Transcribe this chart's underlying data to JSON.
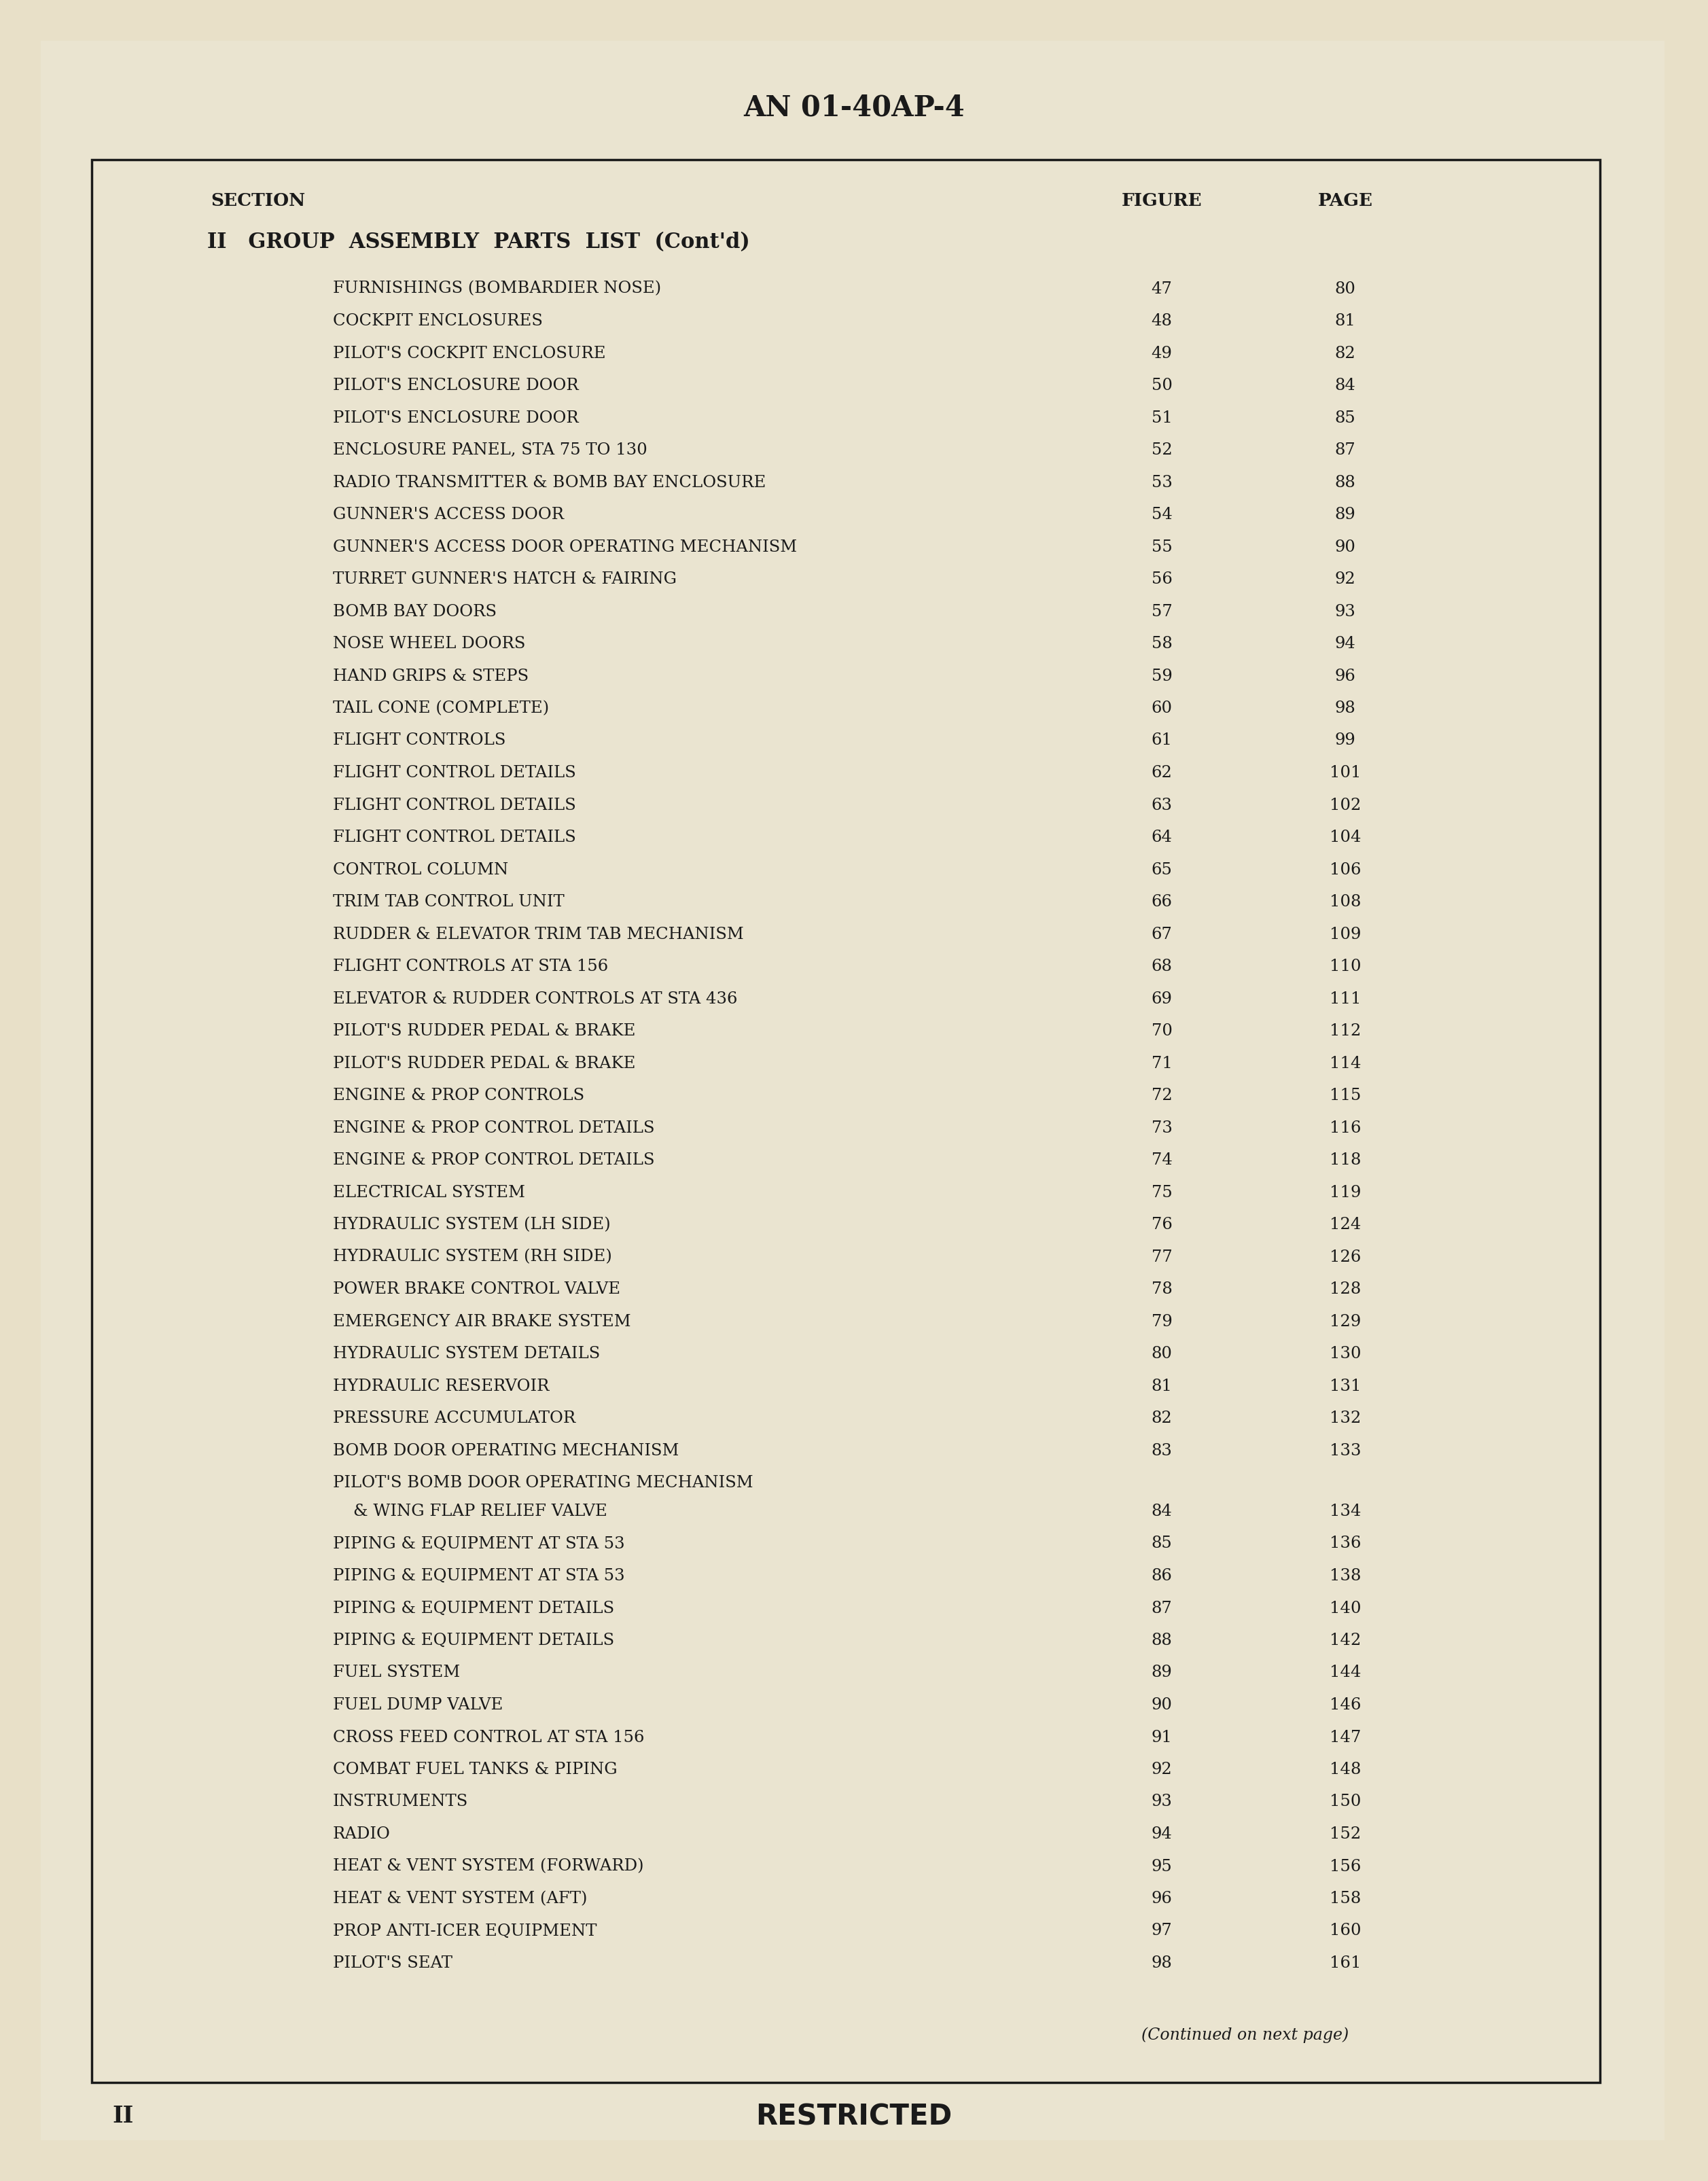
{
  "bg_color": "#E8E0C8",
  "page_bg": "#EAE4D0",
  "border_color": "#1a1a1a",
  "text_color": "#1a1a1a",
  "header_title": "AN 01-40AP-4",
  "section_label": "SECTION",
  "figure_label": "FIGURE",
  "page_label": "PAGE",
  "section_heading_1": "II   GROUP  ASSEMBLY  PARTS  LIST  (Cont'd)",
  "footer_left": "II",
  "footer_center": "RESTRICTED",
  "footer_note": "(Continued on next page)",
  "entries": [
    {
      "desc": "FURNISHINGS (BOMBARDIER NOSE)",
      "fig": "47",
      "pg": "80",
      "multiline": false
    },
    {
      "desc": "COCKPIT ENCLOSURES",
      "fig": "48",
      "pg": "81",
      "multiline": false
    },
    {
      "desc": "PILOT'S COCKPIT ENCLOSURE",
      "fig": "49",
      "pg": "82",
      "multiline": false
    },
    {
      "desc": "PILOT'S ENCLOSURE DOOR",
      "fig": "50",
      "pg": "84",
      "multiline": false
    },
    {
      "desc": "PILOT'S ENCLOSURE DOOR",
      "fig": "51",
      "pg": "85",
      "multiline": false
    },
    {
      "desc": "ENCLOSURE PANEL, STA 75 TO 130",
      "fig": "52",
      "pg": "87",
      "multiline": false
    },
    {
      "desc": "RADIO TRANSMITTER & BOMB BAY ENCLOSURE",
      "fig": "53",
      "pg": "88",
      "multiline": false
    },
    {
      "desc": "GUNNER'S ACCESS DOOR",
      "fig": "54",
      "pg": "89",
      "multiline": false
    },
    {
      "desc": "GUNNER'S ACCESS DOOR OPERATING MECHANISM",
      "fig": "55",
      "pg": "90",
      "multiline": false
    },
    {
      "desc": "TURRET GUNNER'S HATCH & FAIRING",
      "fig": "56",
      "pg": "92",
      "multiline": false
    },
    {
      "desc": "BOMB BAY DOORS",
      "fig": "57",
      "pg": "93",
      "multiline": false
    },
    {
      "desc": "NOSE WHEEL DOORS",
      "fig": "58",
      "pg": "94",
      "multiline": false
    },
    {
      "desc": "HAND GRIPS & STEPS",
      "fig": "59",
      "pg": "96",
      "multiline": false
    },
    {
      "desc": "TAIL CONE (COMPLETE)",
      "fig": "60",
      "pg": "98",
      "multiline": false
    },
    {
      "desc": "FLIGHT CONTROLS",
      "fig": "61",
      "pg": "99",
      "multiline": false
    },
    {
      "desc": "FLIGHT CONTROL DETAILS",
      "fig": "62",
      "pg": "101",
      "multiline": false
    },
    {
      "desc": "FLIGHT CONTROL DETAILS",
      "fig": "63",
      "pg": "102",
      "multiline": false
    },
    {
      "desc": "FLIGHT CONTROL DETAILS",
      "fig": "64",
      "pg": "104",
      "multiline": false
    },
    {
      "desc": "CONTROL COLUMN",
      "fig": "65",
      "pg": "106",
      "multiline": false
    },
    {
      "desc": "TRIM TAB CONTROL UNIT",
      "fig": "66",
      "pg": "108",
      "multiline": false
    },
    {
      "desc": "RUDDER & ELEVATOR TRIM TAB MECHANISM",
      "fig": "67",
      "pg": "109",
      "multiline": false
    },
    {
      "desc": "FLIGHT CONTROLS AT STA 156",
      "fig": "68",
      "pg": "110",
      "multiline": false
    },
    {
      "desc": "ELEVATOR & RUDDER CONTROLS AT STA 436",
      "fig": "69",
      "pg": "111",
      "multiline": false
    },
    {
      "desc": "PILOT'S RUDDER PEDAL & BRAKE",
      "fig": "70",
      "pg": "112",
      "multiline": false
    },
    {
      "desc": "PILOT'S RUDDER PEDAL & BRAKE",
      "fig": "71",
      "pg": "114",
      "multiline": false
    },
    {
      "desc": "ENGINE & PROP CONTROLS",
      "fig": "72",
      "pg": "115",
      "multiline": false
    },
    {
      "desc": "ENGINE & PROP CONTROL DETAILS",
      "fig": "73",
      "pg": "116",
      "multiline": false
    },
    {
      "desc": "ENGINE & PROP CONTROL DETAILS",
      "fig": "74",
      "pg": "118",
      "multiline": false
    },
    {
      "desc": "ELECTRICAL SYSTEM",
      "fig": "75",
      "pg": "119",
      "multiline": false
    },
    {
      "desc": "HYDRAULIC SYSTEM (LH SIDE)",
      "fig": "76",
      "pg": "124",
      "multiline": false
    },
    {
      "desc": "HYDRAULIC SYSTEM (RH SIDE)",
      "fig": "77",
      "pg": "126",
      "multiline": false
    },
    {
      "desc": "POWER BRAKE CONTROL VALVE",
      "fig": "78",
      "pg": "128",
      "multiline": false
    },
    {
      "desc": "EMERGENCY AIR BRAKE SYSTEM",
      "fig": "79",
      "pg": "129",
      "multiline": false
    },
    {
      "desc": "HYDRAULIC SYSTEM DETAILS",
      "fig": "80",
      "pg": "130",
      "multiline": false
    },
    {
      "desc": "HYDRAULIC RESERVOIR",
      "fig": "81",
      "pg": "131",
      "multiline": false
    },
    {
      "desc": "PRESSURE ACCUMULATOR",
      "fig": "82",
      "pg": "132",
      "multiline": false
    },
    {
      "desc": "BOMB DOOR OPERATING MECHANISM",
      "fig": "83",
      "pg": "133",
      "multiline": false
    },
    {
      "desc": "PILOT'S BOMB DOOR OPERATING MECHANISM",
      "desc2": "& WING FLAP RELIEF VALVE",
      "fig": "84",
      "pg": "134",
      "multiline": true
    },
    {
      "desc": "PIPING & EQUIPMENT AT STA 53",
      "fig": "85",
      "pg": "136",
      "multiline": false
    },
    {
      "desc": "PIPING & EQUIPMENT AT STA 53",
      "fig": "86",
      "pg": "138",
      "multiline": false
    },
    {
      "desc": "PIPING & EQUIPMENT DETAILS",
      "fig": "87",
      "pg": "140",
      "multiline": false
    },
    {
      "desc": "PIPING & EQUIPMENT DETAILS",
      "fig": "88",
      "pg": "142",
      "multiline": false
    },
    {
      "desc": "FUEL SYSTEM",
      "fig": "89",
      "pg": "144",
      "multiline": false
    },
    {
      "desc": "FUEL DUMP VALVE",
      "fig": "90",
      "pg": "146",
      "multiline": false
    },
    {
      "desc": "CROSS FEED CONTROL AT STA 156",
      "fig": "91",
      "pg": "147",
      "multiline": false
    },
    {
      "desc": "COMBAT FUEL TANKS & PIPING",
      "fig": "92",
      "pg": "148",
      "multiline": false
    },
    {
      "desc": "INSTRUMENTS",
      "fig": "93",
      "pg": "150",
      "multiline": false
    },
    {
      "desc": "RADIO",
      "fig": "94",
      "pg": "152",
      "multiline": false
    },
    {
      "desc": "HEAT & VENT SYSTEM (FORWARD)",
      "fig": "95",
      "pg": "156",
      "multiline": false
    },
    {
      "desc": "HEAT & VENT SYSTEM (AFT)",
      "fig": "96",
      "pg": "158",
      "multiline": false
    },
    {
      "desc": "PROP ANTI-ICER EQUIPMENT",
      "fig": "97",
      "pg": "160",
      "multiline": false
    },
    {
      "desc": "PILOT'S SEAT",
      "fig": "98",
      "pg": "161",
      "multiline": false
    }
  ]
}
